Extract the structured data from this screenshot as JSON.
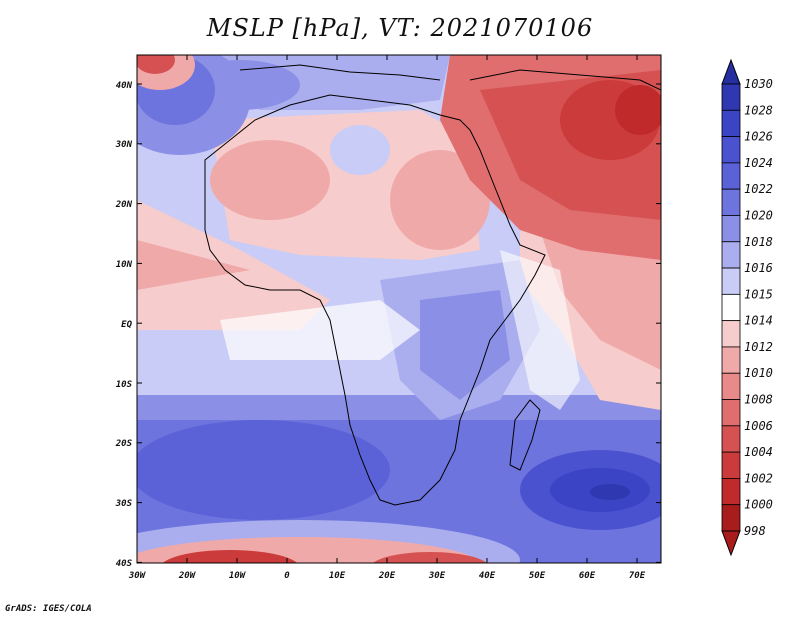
{
  "title": "MSLP [hPa], VT: 2021070106",
  "footer": "GrADS: IGES/COLA",
  "map": {
    "lon_range": [
      -30,
      75
    ],
    "lat_range": [
      -40,
      45
    ],
    "x_ticks": [
      "30W",
      "20W",
      "10W",
      "0",
      "10E",
      "20E",
      "30E",
      "40E",
      "50E",
      "60E",
      "70E"
    ],
    "y_ticks": [
      "40N",
      "30N",
      "20N",
      "10N",
      "EQ",
      "10S",
      "20S",
      "30S",
      "40S"
    ]
  },
  "colorbar": {
    "labels": [
      "1030",
      "1028",
      "1026",
      "1024",
      "1022",
      "1020",
      "1018",
      "1016",
      "1015",
      "1014",
      "1012",
      "1010",
      "1008",
      "1006",
      "1004",
      "1002",
      "1000",
      "998"
    ],
    "colors": [
      "#252fa0",
      "#2f38b0",
      "#3b44c4",
      "#4a52d0",
      "#5b62d8",
      "#6d74dd",
      "#8b90e6",
      "#aaaeee",
      "#c9ccf6",
      "#ffffff",
      "#f7cccc",
      "#f0a9a9",
      "#e88a8a",
      "#e06e6e",
      "#d65252",
      "#cc3b3b",
      "#c02a2a",
      "#a81c1c"
    ]
  }
}
